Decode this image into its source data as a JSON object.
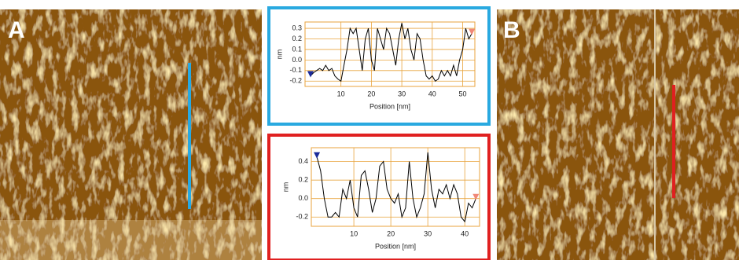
{
  "panels": {
    "left_label": "A",
    "right_label": "B"
  },
  "chart_data": [
    {
      "type": "line",
      "x_label": "Position [nm]",
      "y_label": "nm",
      "x": [
        0,
        1,
        2,
        3,
        4,
        5,
        6,
        7,
        8,
        9,
        10,
        11,
        12,
        13,
        14,
        15,
        16,
        17,
        18,
        19,
        20,
        21,
        22,
        23,
        24,
        25,
        26,
        27,
        28,
        29,
        30,
        31,
        32,
        33,
        34,
        35,
        36,
        37,
        38,
        39,
        40,
        41,
        42,
        43,
        44,
        45,
        46,
        47,
        48,
        49,
        50,
        51,
        52,
        53
      ],
      "series": [
        {
          "color": "#000000",
          "values": [
            -0.15,
            -0.12,
            -0.1,
            -0.08,
            -0.1,
            -0.05,
            -0.1,
            -0.08,
            -0.15,
            -0.18,
            -0.2,
            -0.05,
            0.1,
            0.3,
            0.25,
            0.3,
            0.1,
            -0.1,
            0.2,
            0.3,
            0.0,
            -0.1,
            0.3,
            0.2,
            0.1,
            0.3,
            0.25,
            0.1,
            -0.05,
            0.2,
            0.35,
            0.2,
            0.3,
            0.1,
            0.0,
            0.25,
            0.2,
            0.0,
            -0.15,
            -0.18,
            -0.15,
            -0.2,
            -0.18,
            -0.1,
            -0.15,
            -0.1,
            -0.15,
            -0.05,
            -0.15,
            0.0,
            0.1,
            0.3,
            0.2,
            0.25
          ]
        }
      ],
      "xlim": [
        -1.8,
        54
      ],
      "ylim": [
        -0.25,
        0.36
      ],
      "xticks": [
        10,
        20,
        30,
        40,
        50
      ],
      "yticks": [
        0.3,
        0.2,
        0.1,
        {
          "value": 0,
          "label": "0.0"
        },
        -0.1,
        -0.2
      ],
      "grid": true,
      "frame_color": "#29a9e0"
    },
    {
      "type": "line",
      "x_label": "Position [nm]",
      "y_label": "nm",
      "x": [
        0,
        1,
        2,
        3,
        4,
        5,
        6,
        7,
        8,
        9,
        10,
        11,
        12,
        13,
        14,
        15,
        16,
        17,
        18,
        19,
        20,
        21,
        22,
        23,
        24,
        25,
        26,
        27,
        28,
        29,
        30,
        31,
        32,
        33,
        34,
        35,
        36,
        37,
        38,
        39,
        40,
        41,
        42,
        43
      ],
      "series": [
        {
          "color": "#000000",
          "values": [
            0.45,
            0.3,
            0.0,
            -0.2,
            -0.2,
            -0.15,
            -0.2,
            0.1,
            0.0,
            0.2,
            -0.1,
            -0.2,
            0.25,
            0.3,
            0.1,
            -0.15,
            0.0,
            0.35,
            0.4,
            0.1,
            0.0,
            -0.05,
            0.05,
            -0.2,
            -0.1,
            0.4,
            0.0,
            -0.2,
            -0.1,
            0.05,
            0.5,
            0.1,
            -0.1,
            0.1,
            0.05,
            0.15,
            0.0,
            0.15,
            0.05,
            -0.2,
            -0.25,
            -0.05,
            -0.1,
            0.0
          ]
        }
      ],
      "xlim": [
        -1.5,
        44
      ],
      "ylim": [
        -0.3,
        0.55
      ],
      "xticks": [
        10,
        20,
        30,
        40
      ],
      "yticks": [
        0.4,
        0.2,
        {
          "value": 0,
          "label": "0.0"
        },
        -0.2
      ],
      "grid": true,
      "frame_color": "#e02020"
    }
  ]
}
